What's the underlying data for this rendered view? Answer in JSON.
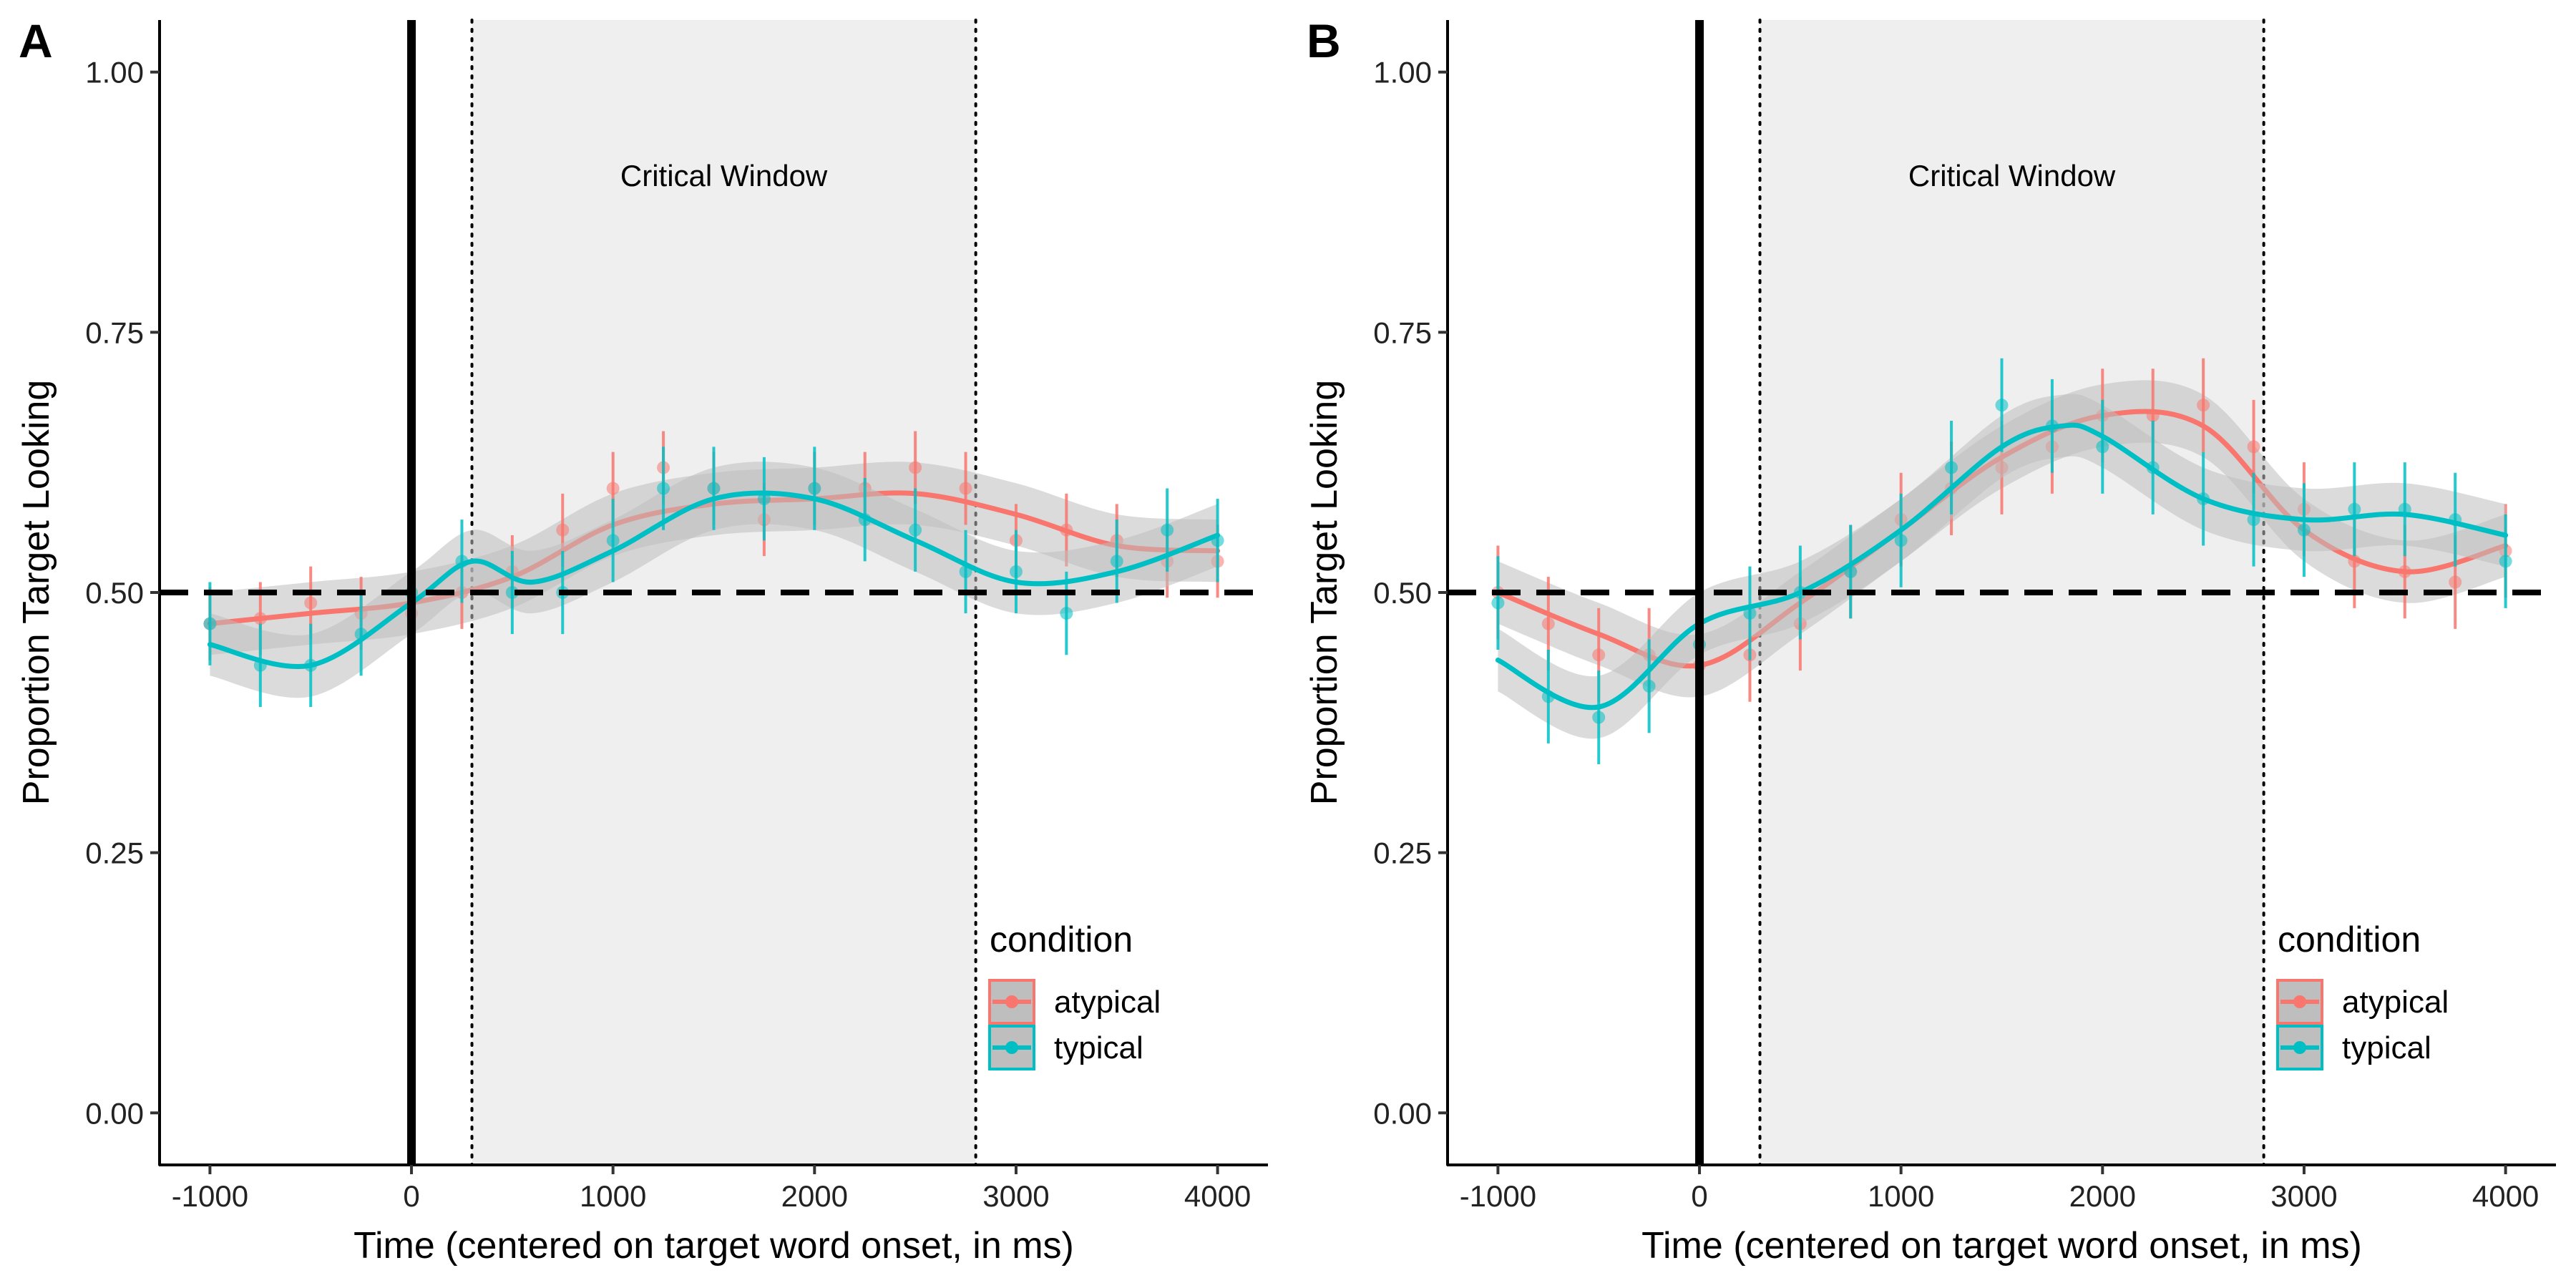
{
  "colors": {
    "atypical": "#F8766D",
    "typical": "#00BFC4",
    "window_fill": "#EFEFEF",
    "band_fill": "#BEBEBE"
  },
  "chart_data": [
    {
      "panel": "A",
      "type": "line",
      "xlabel": "Time (centered on target word onset, in ms)",
      "ylabel": "Proportion Target Looking",
      "xlim": [
        -1250,
        4250
      ],
      "ylim": [
        -0.05,
        1.05
      ],
      "xticks": [
        "-1000",
        "0",
        "1000",
        "2000",
        "3000",
        "4000"
      ],
      "yticks": [
        "0.00",
        "0.25",
        "0.50",
        "0.75",
        "1.00"
      ],
      "chance_level": 0.5,
      "onset": 0,
      "critical_window": {
        "label": "Critical Window",
        "start": 300,
        "end": 2800
      },
      "legend": {
        "title": "condition",
        "placement": "bottom-right"
      },
      "series": [
        {
          "name": "atypical",
          "color": "#F8766D",
          "smooth": {
            "x": [
              -1000,
              -500,
              0,
              500,
              1000,
              1500,
              2000,
              2500,
              3000,
              3500,
              4000
            ],
            "y": [
              0.47,
              0.48,
              0.49,
              0.515,
              0.565,
              0.585,
              0.59,
              0.595,
              0.575,
              0.545,
              0.54
            ]
          },
          "points": {
            "x": [
              -1000,
              -750,
              -500,
              -250,
              0,
              250,
              500,
              750,
              1000,
              1250,
              1500,
              1750,
              2000,
              2250,
              2500,
              2750,
              3000,
              3250,
              3500,
              3750,
              4000
            ],
            "y": [
              0.47,
              0.475,
              0.49,
              0.48,
              0.48,
              0.5,
              0.52,
              0.56,
              0.6,
              0.62,
              0.6,
              0.57,
              0.6,
              0.6,
              0.62,
              0.6,
              0.55,
              0.56,
              0.55,
              0.53,
              0.53
            ],
            "err": [
              0.035,
              0.035,
              0.035,
              0.035,
              0.035,
              0.035,
              0.035,
              0.035,
              0.035,
              0.035,
              0.035,
              0.035,
              0.035,
              0.035,
              0.035,
              0.035,
              0.035,
              0.035,
              0.035,
              0.035,
              0.035
            ]
          }
        },
        {
          "name": "typical",
          "color": "#00BFC4",
          "smooth": {
            "x": [
              -1000,
              -500,
              0,
              300,
              600,
              1000,
              1500,
              2000,
              2500,
              3000,
              3500,
              4000
            ],
            "y": [
              0.45,
              0.43,
              0.49,
              0.53,
              0.51,
              0.54,
              0.59,
              0.59,
              0.55,
              0.51,
              0.52,
              0.555
            ]
          },
          "points": {
            "x": [
              -1000,
              -750,
              -500,
              -250,
              0,
              250,
              500,
              750,
              1000,
              1250,
              1500,
              1750,
              2000,
              2250,
              2500,
              2750,
              3000,
              3250,
              3500,
              3750,
              4000
            ],
            "y": [
              0.47,
              0.43,
              0.43,
              0.46,
              0.5,
              0.53,
              0.5,
              0.5,
              0.55,
              0.6,
              0.6,
              0.59,
              0.6,
              0.57,
              0.56,
              0.52,
              0.52,
              0.48,
              0.53,
              0.56,
              0.55
            ],
            "err": [
              0.04,
              0.04,
              0.04,
              0.04,
              0.04,
              0.04,
              0.04,
              0.04,
              0.04,
              0.04,
              0.04,
              0.04,
              0.04,
              0.04,
              0.04,
              0.04,
              0.04,
              0.04,
              0.04,
              0.04,
              0.04
            ]
          }
        }
      ]
    },
    {
      "panel": "B",
      "type": "line",
      "xlabel": "Time (centered on target word onset, in ms)",
      "ylabel": "Proportion Target Looking",
      "xlim": [
        -1250,
        4250
      ],
      "ylim": [
        -0.05,
        1.05
      ],
      "xticks": [
        "-1000",
        "0",
        "1000",
        "2000",
        "3000",
        "4000"
      ],
      "yticks": [
        "0.00",
        "0.25",
        "0.50",
        "0.75",
        "1.00"
      ],
      "chance_level": 0.5,
      "onset": 0,
      "critical_window": {
        "label": "Critical Window",
        "start": 300,
        "end": 2800
      },
      "legend": {
        "title": "condition",
        "placement": "bottom-right"
      },
      "series": [
        {
          "name": "atypical",
          "color": "#F8766D",
          "smooth": {
            "x": [
              -1000,
              -500,
              0,
              500,
              1000,
              1500,
              2000,
              2500,
              3000,
              3500,
              4000
            ],
            "y": [
              0.5,
              0.46,
              0.43,
              0.49,
              0.56,
              0.63,
              0.67,
              0.66,
              0.56,
              0.52,
              0.545
            ]
          },
          "points": {
            "x": [
              -1000,
              -750,
              -500,
              -250,
              0,
              250,
              500,
              750,
              1000,
              1250,
              1500,
              1750,
              2000,
              2250,
              2500,
              2750,
              3000,
              3250,
              3500,
              3750,
              4000
            ],
            "y": [
              0.5,
              0.47,
              0.44,
              0.44,
              0.43,
              0.44,
              0.47,
              0.52,
              0.57,
              0.6,
              0.62,
              0.64,
              0.67,
              0.67,
              0.68,
              0.64,
              0.58,
              0.53,
              0.52,
              0.51,
              0.54
            ],
            "err": [
              0.045,
              0.045,
              0.045,
              0.045,
              0.045,
              0.045,
              0.045,
              0.045,
              0.045,
              0.045,
              0.045,
              0.045,
              0.045,
              0.045,
              0.045,
              0.045,
              0.045,
              0.045,
              0.045,
              0.045,
              0.045
            ]
          }
        },
        {
          "name": "typical",
          "color": "#00BFC4",
          "smooth": {
            "x": [
              -1000,
              -500,
              0,
              500,
              1000,
              1500,
              1800,
              2000,
              2500,
              3000,
              3500,
              4000
            ],
            "y": [
              0.435,
              0.39,
              0.47,
              0.5,
              0.56,
              0.64,
              0.66,
              0.65,
              0.59,
              0.57,
              0.575,
              0.555
            ]
          },
          "points": {
            "x": [
              -1000,
              -750,
              -500,
              -250,
              0,
              250,
              500,
              750,
              1000,
              1250,
              1500,
              1750,
              2000,
              2250,
              2500,
              2750,
              3000,
              3250,
              3500,
              3750,
              4000
            ],
            "y": [
              0.49,
              0.4,
              0.38,
              0.41,
              0.45,
              0.48,
              0.5,
              0.52,
              0.55,
              0.62,
              0.68,
              0.66,
              0.64,
              0.62,
              0.59,
              0.57,
              0.56,
              0.58,
              0.58,
              0.57,
              0.53
            ],
            "err": [
              0.045,
              0.045,
              0.045,
              0.045,
              0.045,
              0.045,
              0.045,
              0.045,
              0.045,
              0.045,
              0.045,
              0.045,
              0.045,
              0.045,
              0.045,
              0.045,
              0.045,
              0.045,
              0.045,
              0.045,
              0.045
            ]
          }
        }
      ]
    }
  ]
}
